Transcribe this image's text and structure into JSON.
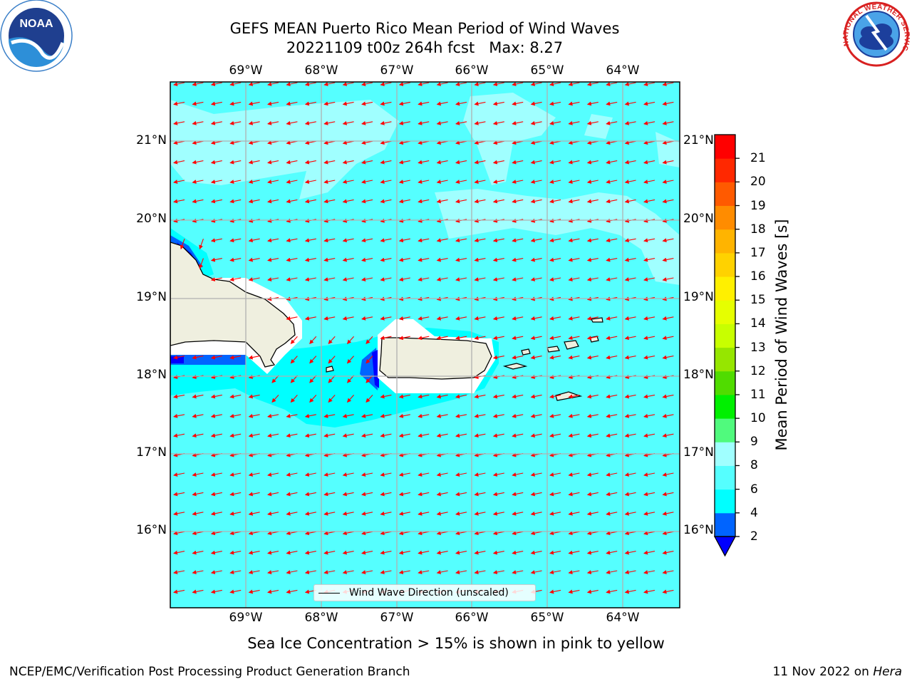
{
  "title": {
    "line1": "GEFS MEAN Puerto Rico Mean Period of Wind Waves",
    "line2": "20221109 t00z 264h fcst   Max: 8.27"
  },
  "map": {
    "lon_ticks": [
      "69°W",
      "68°W",
      "67°W",
      "66°W",
      "65°W",
      "64°W"
    ],
    "lat_ticks": [
      "21°N",
      "20°N",
      "19°N",
      "18°N",
      "17°N",
      "16°N"
    ],
    "lon_range": [
      -70.0,
      -63.25
    ],
    "lat_range": [
      15.0,
      21.75
    ],
    "arrow_color": "#ff0000",
    "coastline_color": "#000000",
    "land_color": "#efefdf",
    "ocean_color": "#55ffff",
    "legend_label": "Wind Wave Direction (unscaled)"
  },
  "colorbar": {
    "title": "Mean Period of Wind Waves [s]",
    "levels": [
      "2",
      "4",
      "6",
      "8",
      "9",
      "10",
      "11",
      "12",
      "13",
      "14",
      "15",
      "16",
      "17",
      "18",
      "19",
      "20",
      "21"
    ],
    "colors": [
      "#0064ff",
      "#00ffff",
      "#55ffff",
      "#a0ffff",
      "#50fa7d",
      "#00f000",
      "#50dc00",
      "#96e600",
      "#c8ff00",
      "#e6ff00",
      "#fff000",
      "#ffd200",
      "#ffb400",
      "#ff8c00",
      "#ff5a00",
      "#ff2800",
      "#ff0000"
    ],
    "under_color": "#0000ff"
  },
  "logos": {
    "left_text": "NOAA",
    "right_text": "NATIONAL WEATHER SERVICE"
  },
  "subtitle": "Sea Ice Concentration > 15% is shown in pink to yellow",
  "footer": {
    "left": "NCEP/EMC/Verification Post Processing Product Generation Branch",
    "right_date": "11 Nov 2022 on ",
    "right_host": "Hera"
  }
}
